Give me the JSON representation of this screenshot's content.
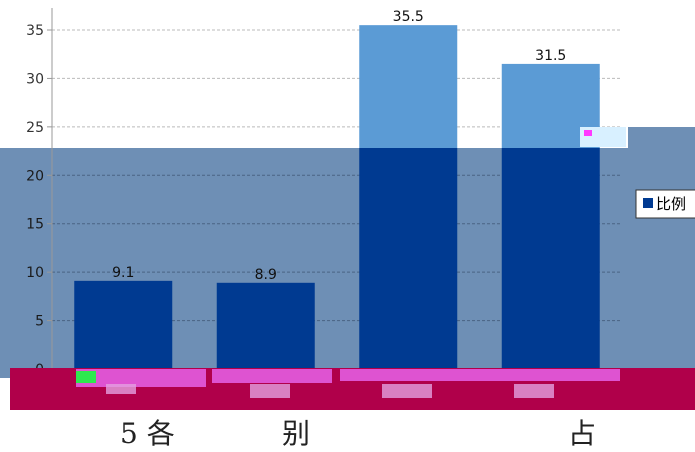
{
  "chart_data": {
    "type": "bar",
    "categories": [
      "",
      "",
      "",
      ""
    ],
    "values": [
      9.1,
      8.9,
      35.5,
      31.5
    ],
    "data_labels": [
      "9.1",
      "8.9",
      "35.5",
      "31.5"
    ],
    "ylim": [
      0,
      35
    ],
    "yticks": [
      "0",
      "5",
      "10",
      "15",
      "20",
      "25",
      "30",
      "35"
    ],
    "grid": true,
    "legend": {
      "label": "比例",
      "placement": "right"
    },
    "colors": {
      "bar": "#5b9bd5",
      "bar_shaded": "#003a91",
      "overlay": "#6e8fb5",
      "bottom_band": "#b0004a",
      "legend_swatch": "#003a91"
    }
  },
  "caption": {
    "part1": "5 各",
    "part2": "别",
    "part3": "占"
  }
}
